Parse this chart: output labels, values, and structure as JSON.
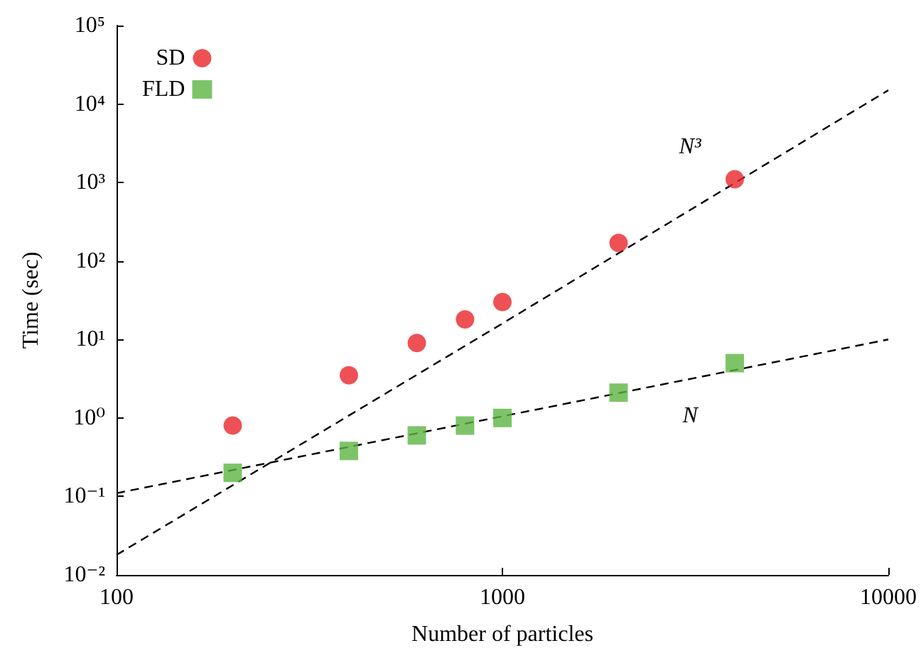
{
  "chart_data": {
    "type": "scatter",
    "xlabel": "Number of particles",
    "ylabel": "Time (sec)",
    "log": "xy",
    "grid": false,
    "legend": "top left",
    "xlim": [
      100,
      10000
    ],
    "xticks": [
      100,
      1000,
      10000
    ],
    "ylim": [
      0.01,
      100000
    ],
    "yticks": [
      {
        "value": 0.01,
        "label": "10⁻²"
      },
      {
        "value": 0.1,
        "label": "10⁻¹"
      },
      {
        "value": 1,
        "label": "10⁰"
      },
      {
        "value": 10,
        "label": "10¹"
      },
      {
        "value": 100,
        "label": "10²"
      },
      {
        "value": 1000,
        "label": "10³"
      },
      {
        "value": 10000,
        "label": "10⁴"
      },
      {
        "value": 100000,
        "label": "10⁵"
      }
    ],
    "x": [
      200,
      400,
      600,
      800,
      1000,
      2000,
      4000
    ],
    "series": [
      {
        "name": "SD",
        "color": "#e8262b",
        "marker": "circle",
        "values": [
          0.8,
          3.5,
          9,
          18,
          30,
          170,
          1100
        ]
      },
      {
        "name": "FLD",
        "color": "#5db543",
        "marker": "square",
        "values": [
          0.2,
          0.38,
          0.6,
          0.8,
          1.0,
          2.1,
          5
        ]
      },
      {
        "type": "line",
        "color": "#000000",
        "line_style": "dashed",
        "marker": "none",
        "x": [
          100,
          1000,
          10000
        ],
        "values": [
          0.018,
          16,
          15000
        ]
      },
      {
        "type": "line",
        "color": "#000000",
        "line_style": "dashed",
        "marker": "none",
        "x": [
          100,
          1000,
          10000
        ],
        "values": [
          0.11,
          1.05,
          10
        ]
      }
    ],
    "annotations": [
      "N³",
      "N"
    ]
  }
}
